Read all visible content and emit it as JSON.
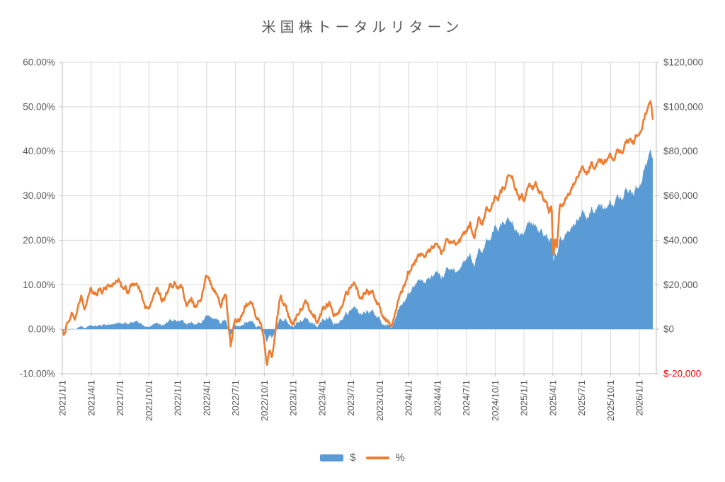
{
  "title": "米国株トータルリターン",
  "colors": {
    "usd_series": "#5B9BD5",
    "pct_series": "#ED7D31",
    "gridline": "#D9D9D9",
    "axis_line": "#BFBFBF",
    "axis_text": "#595959",
    "negative_dollar_label": "#FF0000",
    "background": "#FFFFFF"
  },
  "legend": {
    "items": [
      {
        "label": "$",
        "swatch": "area",
        "color": "#5B9BD5"
      },
      {
        "label": "%",
        "swatch": "line",
        "color": "#ED7D31"
      }
    ]
  },
  "chart_data": {
    "type": "area",
    "subtype": "combo: filled area ($, right axis) + line (%, left axis), daily frequency",
    "title": "米国株トータルリターン",
    "x_axis": {
      "tick_labels": [
        "2021/1/1",
        "2021/4/1",
        "2021/7/1",
        "2021/10/1",
        "2022/1/1",
        "2022/4/1",
        "2022/7/1",
        "2022/10/1",
        "2023/1/1",
        "2023/4/1",
        "2023/7/1",
        "2023/10/1",
        "2024/1/1",
        "2024/4/1",
        "2024/7/1",
        "2024/10/1",
        "2025/1/1",
        "2025/4/1",
        "2025/7/1",
        "2025/10/1",
        "2026/1/1"
      ],
      "tick_step_months": 3,
      "data_end": "2026/2 (approx.)"
    },
    "left_axis": {
      "unit": "%",
      "min": -10,
      "max": 60,
      "tick_step": 10,
      "tick_labels": [
        "60.00%",
        "50.00%",
        "40.00%",
        "30.00%",
        "20.00%",
        "10.00%",
        "0.00%",
        "-10.00%"
      ]
    },
    "right_axis": {
      "unit": "$",
      "min": -20000,
      "max": 120000,
      "tick_step": 20000,
      "tick_labels": [
        "$120,000",
        "$100,000",
        "$80,000",
        "$60,000",
        "$40,000",
        "$20,000",
        "$0",
        "$-20,000"
      ],
      "negative_label_color": "#FF0000"
    },
    "series": [
      {
        "name": "$",
        "type": "area",
        "axis": "right",
        "color": "#5B9BD5"
      },
      {
        "name": "%",
        "type": "line",
        "axis": "left",
        "color": "#ED7D31"
      }
    ],
    "anchor_format": [
      "months_since_2021_01_01",
      "pct_return",
      "usd_gain"
    ],
    "anchors": [
      [
        0,
        -0.3,
        0
      ],
      [
        0.25,
        -1,
        -150
      ],
      [
        0.5,
        1.5,
        150
      ],
      [
        1,
        4.2,
        500
      ],
      [
        1.3,
        3.2,
        400
      ],
      [
        1.7,
        6,
        1100
      ],
      [
        2,
        7.2,
        1300
      ],
      [
        2.3,
        5.2,
        950
      ],
      [
        2.7,
        7.5,
        1500
      ],
      [
        3,
        9.3,
        1950
      ],
      [
        3.5,
        8.2,
        1750
      ],
      [
        4,
        9.6,
        2100
      ],
      [
        4.2,
        8.2,
        1850
      ],
      [
        4.7,
        10.8,
        2600
      ],
      [
        5,
        10.2,
        2500
      ],
      [
        5.5,
        11.4,
        3100
      ],
      [
        6,
        11.2,
        3100
      ],
      [
        6.3,
        9.2,
        2550
      ],
      [
        6.8,
        8.2,
        2350
      ],
      [
        7.3,
        10.2,
        3100
      ],
      [
        7.7,
        8.8,
        2700
      ],
      [
        8,
        9.4,
        3000
      ],
      [
        8.6,
        5.8,
        1900
      ],
      [
        9,
        5.8,
        1950
      ],
      [
        9.6,
        8.6,
        3000
      ],
      [
        9.9,
        10.2,
        3600
      ],
      [
        10.4,
        7.2,
        2600
      ],
      [
        11,
        8.6,
        3300
      ],
      [
        11.7,
        10.4,
        4200
      ],
      [
        12,
        9.6,
        4000
      ],
      [
        12.3,
        10.5,
        4500
      ],
      [
        12.9,
        5.4,
        2400
      ],
      [
        13.4,
        6.8,
        3100
      ],
      [
        13.9,
        5.2,
        2400
      ],
      [
        14.4,
        7.2,
        3500
      ],
      [
        14.9,
        11.8,
        6000
      ],
      [
        15.2,
        11.2,
        5700
      ],
      [
        16,
        7.2,
        3800
      ],
      [
        16.5,
        5.4,
        2900
      ],
      [
        17,
        8.2,
        4500
      ],
      [
        17.5,
        -3,
        -1800
      ],
      [
        17.8,
        0.6,
        400
      ],
      [
        18.4,
        1.8,
        1100
      ],
      [
        19,
        5.4,
        3300
      ],
      [
        19.6,
        6.4,
        4000
      ],
      [
        20.2,
        3.2,
        2000
      ],
      [
        20.8,
        -0.4,
        -300
      ],
      [
        21.3,
        -7.6,
        -5000
      ],
      [
        21.5,
        -5.4,
        -3600
      ],
      [
        21.8,
        -6.6,
        -4400
      ],
      [
        22.3,
        1.6,
        1100
      ],
      [
        22.7,
        7.9,
        5200
      ],
      [
        23.2,
        5,
        4200
      ],
      [
        23.9,
        0.8,
        700
      ],
      [
        24.6,
        3.2,
        2700
      ],
      [
        25.3,
        6.8,
        5800
      ],
      [
        26,
        3.6,
        3100
      ],
      [
        26.6,
        1.6,
        1400
      ],
      [
        27.2,
        4.8,
        4200
      ],
      [
        27.8,
        5.6,
        5000
      ],
      [
        28.3,
        3.6,
        3200
      ],
      [
        28.9,
        4.8,
        4300
      ],
      [
        29.8,
        9.4,
        8500
      ],
      [
        30.3,
        9.8,
        9000
      ],
      [
        31,
        6.2,
        5700
      ],
      [
        31.6,
        8.6,
        8000
      ],
      [
        32.2,
        7.8,
        7300
      ],
      [
        33,
        5,
        4800
      ],
      [
        33.8,
        1.6,
        1600
      ],
      [
        34.1,
        0.5,
        600
      ],
      [
        34.6,
        3.5,
        4400
      ],
      [
        35,
        6.2,
        7800
      ],
      [
        35.4,
        8.8,
        11100
      ],
      [
        35.7,
        10.8,
        13700
      ],
      [
        36,
        12.9,
        16400
      ],
      [
        36.5,
        14,
        17900
      ],
      [
        37,
        15.5,
        20000
      ],
      [
        37.5,
        16.8,
        21800
      ],
      [
        38,
        17.5,
        22900
      ],
      [
        38.5,
        19,
        25100
      ],
      [
        39,
        18.4,
        24500
      ],
      [
        39.4,
        16.8,
        22400
      ],
      [
        39.9,
        19.9,
        26800
      ],
      [
        40.3,
        18.8,
        25500
      ],
      [
        41,
        20,
        27500
      ],
      [
        41.5,
        21.5,
        30000
      ],
      [
        42,
        21.2,
        29800
      ],
      [
        42.4,
        23.5,
        33300
      ],
      [
        42.8,
        21.5,
        30700
      ],
      [
        43.3,
        24.7,
        35500
      ],
      [
        43.6,
        22.8,
        33000
      ],
      [
        44.1,
        26.5,
        38800
      ],
      [
        44.4,
        25.5,
        37500
      ],
      [
        45,
        29.2,
        45600
      ],
      [
        45.5,
        30.8,
        47000
      ],
      [
        46,
        32.3,
        48800
      ],
      [
        46.5,
        35.3,
        50200
      ],
      [
        46.8,
        34.6,
        49300
      ],
      [
        47.5,
        29.6,
        43200
      ],
      [
        47.8,
        31,
        45000
      ],
      [
        48,
        29.1,
        44100
      ],
      [
        48.6,
        32.4,
        47600
      ],
      [
        48.9,
        31,
        45800
      ],
      [
        49.2,
        33.5,
        48200
      ],
      [
        49.6,
        31.5,
        45800
      ],
      [
        50.2,
        29.3,
        43300
      ],
      [
        50.6,
        26.5,
        40000
      ],
      [
        50.85,
        28,
        41800
      ],
      [
        51.05,
        16.3,
        30200
      ],
      [
        51.25,
        20.5,
        34500
      ],
      [
        51.4,
        17.8,
        32000
      ],
      [
        51.7,
        27.4,
        40300
      ],
      [
        52.1,
        28.6,
        41700
      ],
      [
        52.4,
        29.4,
        42800
      ],
      [
        52.8,
        31,
        45200
      ],
      [
        53.2,
        33,
        47700
      ],
      [
        53.6,
        34.5,
        49600
      ],
      [
        53.95,
        36.2,
        51700
      ],
      [
        54.25,
        34.8,
        50100
      ],
      [
        54.6,
        35.8,
        51600
      ],
      [
        55,
        37,
        53400
      ],
      [
        55.4,
        35.9,
        52100
      ],
      [
        55.8,
        37.8,
        55000
      ],
      [
        56.2,
        37.2,
        54400
      ],
      [
        56.6,
        38.8,
        56600
      ],
      [
        57,
        39.8,
        58900
      ],
      [
        57.4,
        38.6,
        57400
      ],
      [
        57.8,
        40.4,
        60100
      ],
      [
        58.2,
        40,
        59600
      ],
      [
        58.6,
        41.6,
        61600
      ],
      [
        59,
        42.7,
        62300
      ],
      [
        59.4,
        42.2,
        61700
      ],
      [
        59.8,
        44.3,
        65600
      ],
      [
        60.1,
        45.1,
        67400
      ],
      [
        60.4,
        46.4,
        69900
      ],
      [
        60.7,
        48.2,
        72800
      ],
      [
        60.95,
        49.9,
        76600
      ],
      [
        61.22,
        50,
        77400
      ],
      [
        61.38,
        46.7,
        75300
      ]
    ]
  }
}
